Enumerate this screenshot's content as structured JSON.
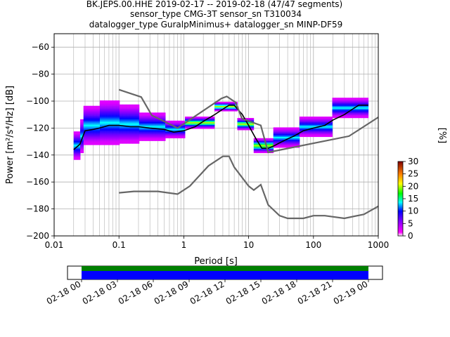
{
  "title": {
    "line1": "BK.JEPS.00.HHE   2019-02-17 -- 2019-02-18  (47/47 segments)",
    "line2": "sensor_type CMG-3T sensor_sn T310034",
    "line3": "datalogger_type GuralpMinimus+ datalogger_sn MINP-DF59"
  },
  "chart_data": {
    "type": "heatmap",
    "xlabel": "Period [s]",
    "ylabel": "Power [m²/s⁴/Hz] [dB]",
    "xscale": "log",
    "xlim": [
      0.01,
      1000
    ],
    "ylim": [
      -200,
      -50
    ],
    "x_ticks": [
      {
        "value": 0.01,
        "label": "0.01"
      },
      {
        "value": 0.1,
        "label": "0.1"
      },
      {
        "value": 1,
        "label": "1"
      },
      {
        "value": 10,
        "label": "10"
      },
      {
        "value": 100,
        "label": "100"
      },
      {
        "value": 1000,
        "label": "1000"
      }
    ],
    "y_ticks": [
      -200,
      -180,
      -160,
      -140,
      -120,
      -100,
      -80,
      -60
    ],
    "grid": true,
    "colorbar": {
      "label": "[%]",
      "min": 0,
      "max": 30,
      "ticks": [
        0,
        5,
        10,
        15,
        20,
        25,
        30
      ]
    },
    "series": [
      {
        "role": "mode",
        "color": "#000000",
        "points": [
          [
            0.02,
            -136
          ],
          [
            0.025,
            -132
          ],
          [
            0.03,
            -122
          ],
          [
            0.04,
            -121
          ],
          [
            0.05,
            -120
          ],
          [
            0.07,
            -118
          ],
          [
            0.1,
            -118
          ],
          [
            0.15,
            -119
          ],
          [
            0.2,
            -119
          ],
          [
            0.3,
            -120
          ],
          [
            0.5,
            -121
          ],
          [
            0.7,
            -123
          ],
          [
            1,
            -122
          ],
          [
            1.5,
            -119
          ],
          [
            2,
            -115
          ],
          [
            3,
            -110
          ],
          [
            4,
            -106
          ],
          [
            5,
            -103
          ],
          [
            6,
            -103
          ],
          [
            8,
            -110
          ],
          [
            10,
            -118
          ],
          [
            13,
            -128
          ],
          [
            16,
            -135
          ],
          [
            20,
            -135
          ],
          [
            25,
            -133
          ],
          [
            30,
            -131
          ],
          [
            40,
            -128
          ],
          [
            50,
            -126
          ],
          [
            70,
            -122
          ],
          [
            100,
            -120
          ],
          [
            150,
            -118
          ],
          [
            200,
            -114
          ],
          [
            300,
            -110
          ],
          [
            400,
            -106
          ],
          [
            500,
            -103
          ],
          [
            700,
            -103
          ]
        ]
      },
      {
        "role": "noise-high",
        "color": "#666666",
        "points": [
          [
            0.1,
            -91.5
          ],
          [
            0.22,
            -97
          ],
          [
            0.32,
            -110.5
          ],
          [
            0.8,
            -120
          ],
          [
            3.8,
            -98
          ],
          [
            4.6,
            -96.5
          ],
          [
            6.3,
            -101
          ],
          [
            7.9,
            -113
          ],
          [
            15.4,
            -118
          ],
          [
            20,
            -138
          ],
          [
            354,
            -126
          ],
          [
            1000,
            -112
          ]
        ]
      },
      {
        "role": "noise-low",
        "color": "#666666",
        "points": [
          [
            0.1,
            -168
          ],
          [
            0.17,
            -167
          ],
          [
            0.4,
            -167
          ],
          [
            0.8,
            -169
          ],
          [
            1.24,
            -163
          ],
          [
            2.4,
            -148
          ],
          [
            4,
            -141
          ],
          [
            5,
            -141
          ],
          [
            6,
            -149
          ],
          [
            10,
            -163
          ],
          [
            12,
            -166
          ],
          [
            15.4,
            -162
          ],
          [
            20,
            -177
          ],
          [
            30,
            -185
          ],
          [
            40,
            -187
          ],
          [
            70,
            -187
          ],
          [
            100,
            -185
          ],
          [
            150,
            -185
          ],
          [
            300,
            -187
          ],
          [
            600,
            -184
          ],
          [
            1000,
            -178
          ]
        ]
      }
    ],
    "histogram_bands": [
      {
        "period": [
          0.02,
          0.025
        ],
        "center": -133,
        "spread": 10
      },
      {
        "period": [
          0.025,
          0.03
        ],
        "center": -126,
        "spread": 12
      },
      {
        "period": [
          0.03,
          0.05
        ],
        "center": -118,
        "spread": 14
      },
      {
        "period": [
          0.05,
          0.1
        ],
        "center": -116,
        "spread": 16
      },
      {
        "period": [
          0.1,
          0.2
        ],
        "center": -117,
        "spread": 14
      },
      {
        "period": [
          0.2,
          0.5
        ],
        "center": -119,
        "spread": 10
      },
      {
        "period": [
          0.5,
          1
        ],
        "center": -121,
        "spread": 6
      },
      {
        "period": [
          1,
          3
        ],
        "center": -116,
        "spread": 4
      },
      {
        "period": [
          3,
          7
        ],
        "center": -104,
        "spread": 3
      },
      {
        "period": [
          7,
          12
        ],
        "center": -117,
        "spread": 4
      },
      {
        "period": [
          12,
          25
        ],
        "center": -133,
        "spread": 5
      },
      {
        "period": [
          25,
          60
        ],
        "center": -127,
        "spread": 7
      },
      {
        "period": [
          60,
          200
        ],
        "center": -119,
        "spread": 7
      },
      {
        "period": [
          200,
          700
        ],
        "center": -105,
        "spread": 7
      }
    ]
  },
  "timeline": {
    "tick_labels": [
      "02-18 00",
      "02-18 03",
      "02-18 06",
      "02-18 09",
      "02-18 12",
      "02-18 15",
      "02-18 18",
      "02-18 21",
      "02-19 00"
    ],
    "green_color": "#008000",
    "blue_color": "#0000ff"
  }
}
